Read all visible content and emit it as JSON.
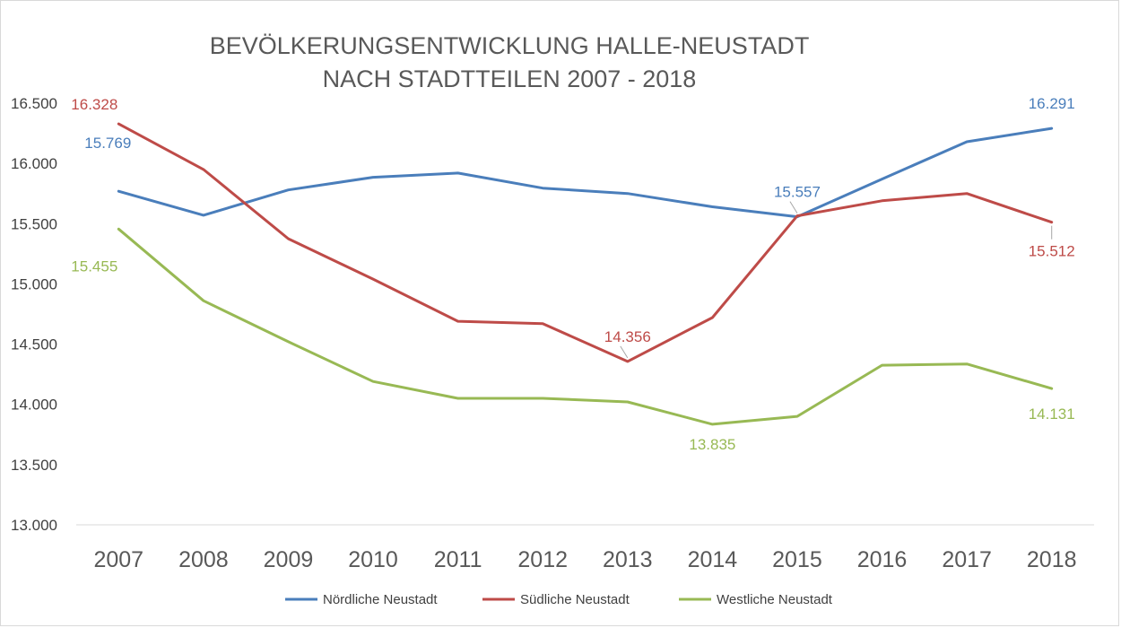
{
  "chart_data": {
    "type": "line",
    "title_lines": [
      "BEVÖLKERUNGSENTWICKLUNG HALLE-NEUSTADT",
      "NACH STADTTEILEN 2007 - 2018"
    ],
    "categories": [
      "2007",
      "2008",
      "2009",
      "2010",
      "2011",
      "2012",
      "2013",
      "2014",
      "2015",
      "2016",
      "2017",
      "2018"
    ],
    "ylim": [
      13000,
      16500
    ],
    "yticks": [
      13000,
      13500,
      14000,
      14500,
      15000,
      15500,
      16000,
      16500
    ],
    "ytick_labels": [
      "13.000",
      "13.500",
      "14.000",
      "14.500",
      "15.000",
      "15.500",
      "16.000",
      "16.500"
    ],
    "grid": false,
    "legend_position": "bottom",
    "series": [
      {
        "name": "Nördliche Neustadt",
        "color": "#4a7ebb",
        "values": [
          15769,
          15570,
          15780,
          15885,
          15920,
          15795,
          15750,
          15640,
          15557,
          15870,
          16180,
          16291
        ],
        "labels": [
          {
            "index": 0,
            "text": "15.769"
          },
          {
            "index": 8,
            "text": "15.557"
          },
          {
            "index": 11,
            "text": "16.291"
          }
        ]
      },
      {
        "name": "Südliche Neustadt",
        "color": "#be4b48",
        "values": [
          16328,
          15950,
          15375,
          15040,
          14690,
          14670,
          14356,
          14720,
          15565,
          15690,
          15750,
          15512
        ],
        "labels": [
          {
            "index": 0,
            "text": "16.328"
          },
          {
            "index": 6,
            "text": "14.356"
          },
          {
            "index": 11,
            "text": "15.512"
          }
        ]
      },
      {
        "name": "Westliche Neustadt",
        "color": "#98b954",
        "values": [
          15455,
          14860,
          14520,
          14190,
          14050,
          14050,
          14020,
          13835,
          13900,
          14325,
          14335,
          14131
        ],
        "labels": [
          {
            "index": 0,
            "text": "15.455"
          },
          {
            "index": 7,
            "text": "13.835"
          },
          {
            "index": 11,
            "text": "14.131"
          }
        ]
      }
    ]
  }
}
